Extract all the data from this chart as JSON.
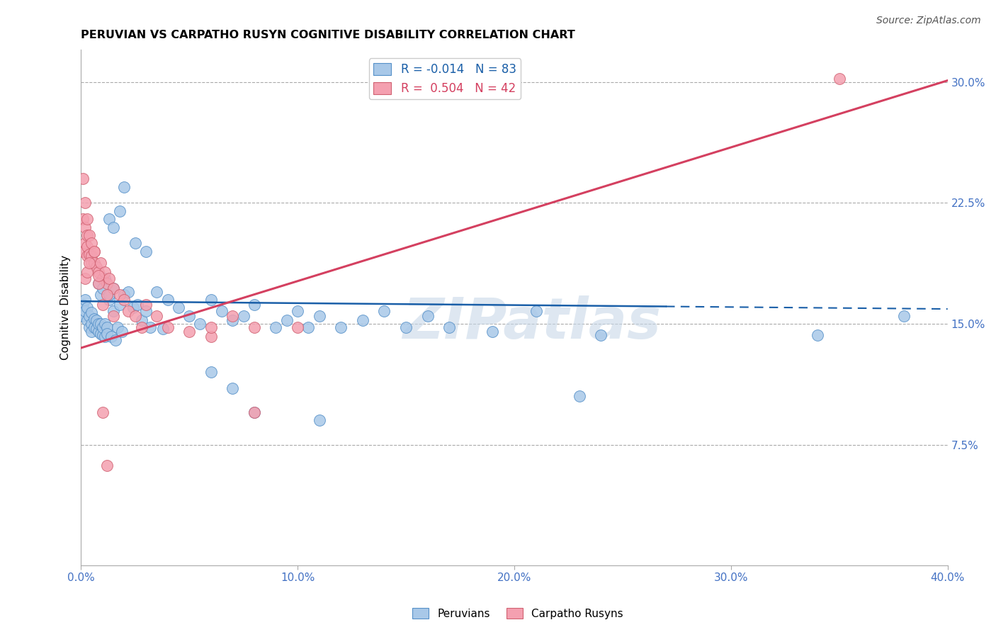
{
  "title": "PERUVIAN VS CARPATHO RUSYN COGNITIVE DISABILITY CORRELATION CHART",
  "source": "Source: ZipAtlas.com",
  "ylabel": "Cognitive Disability",
  "xlim": [
    0.0,
    0.4
  ],
  "ylim": [
    0.0,
    0.32
  ],
  "yticks": [
    0.0,
    0.075,
    0.15,
    0.225,
    0.3
  ],
  "ytick_labels": [
    "",
    "7.5%",
    "15.0%",
    "22.5%",
    "30.0%"
  ],
  "xticks": [
    0.0,
    0.1,
    0.2,
    0.3,
    0.4
  ],
  "xtick_labels": [
    "0.0%",
    "10.0%",
    "20.0%",
    "30.0%",
    "40.0%"
  ],
  "legend_blue_label": "R = -0.014   N = 83",
  "legend_pink_label": "R =  0.504   N = 42",
  "legend_peruvians": "Peruvians",
  "legend_carpatho": "Carpatho Rusyns",
  "blue_color": "#a8c8e8",
  "pink_color": "#f4a0b0",
  "blue_edge_color": "#5590c8",
  "pink_edge_color": "#d06070",
  "blue_line_color": "#1a5fa8",
  "pink_line_color": "#d44060",
  "watermark": "ZIPatlas",
  "blue_line_solid_end": 0.27,
  "blue_scatter_x": [
    0.001,
    0.001,
    0.002,
    0.002,
    0.003,
    0.003,
    0.004,
    0.004,
    0.005,
    0.005,
    0.005,
    0.006,
    0.006,
    0.007,
    0.007,
    0.008,
    0.008,
    0.009,
    0.009,
    0.01,
    0.01,
    0.011,
    0.011,
    0.012,
    0.012,
    0.013,
    0.014,
    0.015,
    0.016,
    0.017,
    0.018,
    0.019,
    0.02,
    0.022,
    0.024,
    0.026,
    0.028,
    0.03,
    0.032,
    0.035,
    0.038,
    0.04,
    0.045,
    0.05,
    0.055,
    0.06,
    0.065,
    0.07,
    0.075,
    0.08,
    0.09,
    0.095,
    0.1,
    0.105,
    0.11,
    0.12,
    0.13,
    0.14,
    0.15,
    0.16,
    0.17,
    0.19,
    0.21,
    0.23,
    0.013,
    0.015,
    0.018,
    0.02,
    0.025,
    0.03,
    0.008,
    0.009,
    0.01,
    0.011,
    0.013,
    0.015,
    0.11,
    0.24,
    0.34,
    0.38,
    0.06,
    0.07,
    0.08
  ],
  "blue_scatter_y": [
    0.162,
    0.155,
    0.158,
    0.165,
    0.152,
    0.16,
    0.148,
    0.155,
    0.15,
    0.145,
    0.157,
    0.153,
    0.148,
    0.147,
    0.152,
    0.145,
    0.15,
    0.144,
    0.15,
    0.143,
    0.148,
    0.142,
    0.15,
    0.148,
    0.144,
    0.165,
    0.142,
    0.158,
    0.14,
    0.148,
    0.162,
    0.145,
    0.168,
    0.17,
    0.16,
    0.162,
    0.152,
    0.158,
    0.148,
    0.17,
    0.147,
    0.165,
    0.16,
    0.155,
    0.15,
    0.165,
    0.158,
    0.152,
    0.155,
    0.162,
    0.148,
    0.152,
    0.158,
    0.148,
    0.155,
    0.148,
    0.152,
    0.158,
    0.148,
    0.155,
    0.148,
    0.145,
    0.158,
    0.105,
    0.215,
    0.21,
    0.22,
    0.235,
    0.2,
    0.195,
    0.175,
    0.168,
    0.172,
    0.178,
    0.168,
    0.172,
    0.09,
    0.143,
    0.143,
    0.155,
    0.12,
    0.11,
    0.095
  ],
  "pink_scatter_x": [
    0.001,
    0.001,
    0.002,
    0.002,
    0.003,
    0.003,
    0.003,
    0.004,
    0.004,
    0.005,
    0.005,
    0.006,
    0.006,
    0.007,
    0.008,
    0.009,
    0.01,
    0.011,
    0.012,
    0.013,
    0.015,
    0.018,
    0.02,
    0.022,
    0.025,
    0.028,
    0.03,
    0.035,
    0.04,
    0.05,
    0.06,
    0.07,
    0.002,
    0.003,
    0.004,
    0.008,
    0.01,
    0.012,
    0.015,
    0.08,
    0.1,
    0.35
  ],
  "pink_scatter_y": [
    0.215,
    0.195,
    0.21,
    0.2,
    0.205,
    0.192,
    0.198,
    0.193,
    0.205,
    0.188,
    0.192,
    0.188,
    0.195,
    0.185,
    0.182,
    0.188,
    0.178,
    0.182,
    0.175,
    0.178,
    0.172,
    0.168,
    0.165,
    0.158,
    0.155,
    0.148,
    0.162,
    0.155,
    0.148,
    0.145,
    0.142,
    0.155,
    0.178,
    0.182,
    0.188,
    0.175,
    0.162,
    0.168,
    0.155,
    0.148,
    0.148,
    0.302
  ],
  "pink_scatter_extra_x": [
    0.001,
    0.002,
    0.003,
    0.005,
    0.006,
    0.008,
    0.01,
    0.012,
    0.06,
    0.08
  ],
  "pink_scatter_extra_y": [
    0.24,
    0.225,
    0.215,
    0.2,
    0.195,
    0.18,
    0.095,
    0.062,
    0.148,
    0.095
  ]
}
